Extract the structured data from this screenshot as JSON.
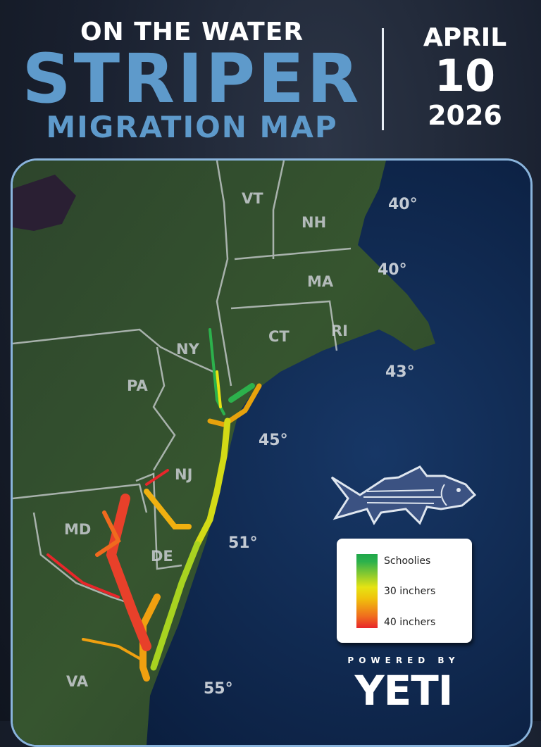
{
  "header": {
    "kicker": "ON THE WATER",
    "title": "STRIPER",
    "subtitle": "MIGRATION MAP",
    "date_month": "APRIL",
    "date_day": "10",
    "date_year": "2026"
  },
  "map": {
    "states": [
      {
        "id": "vt",
        "label": "VT"
      },
      {
        "id": "nh",
        "label": "NH"
      },
      {
        "id": "ma",
        "label": "MA"
      },
      {
        "id": "ct",
        "label": "CT"
      },
      {
        "id": "ri",
        "label": "RI"
      },
      {
        "id": "ny",
        "label": "NY"
      },
      {
        "id": "pa",
        "label": "PA"
      },
      {
        "id": "nj",
        "label": "NJ"
      },
      {
        "id": "md",
        "label": "MD"
      },
      {
        "id": "de",
        "label": "DE"
      },
      {
        "id": "va",
        "label": "VA"
      }
    ],
    "water_temps": [
      "40°",
      "40°",
      "43°",
      "45°",
      "51°",
      "55°"
    ],
    "colors": {
      "schoolies": "#1fa64a",
      "thirty_inchers": "#e6e313",
      "forty_inchers": "#e8262a",
      "ocean": "#0d2448",
      "land": "#2e4a30",
      "frame": "#8ab4dc"
    }
  },
  "legend": {
    "items": [
      "Schoolies",
      "30 inchers",
      "40 inchers"
    ]
  },
  "sponsor": {
    "powered_by": "POWERED BY",
    "brand": "YETI"
  },
  "icons": [
    "striped-bass-icon"
  ]
}
